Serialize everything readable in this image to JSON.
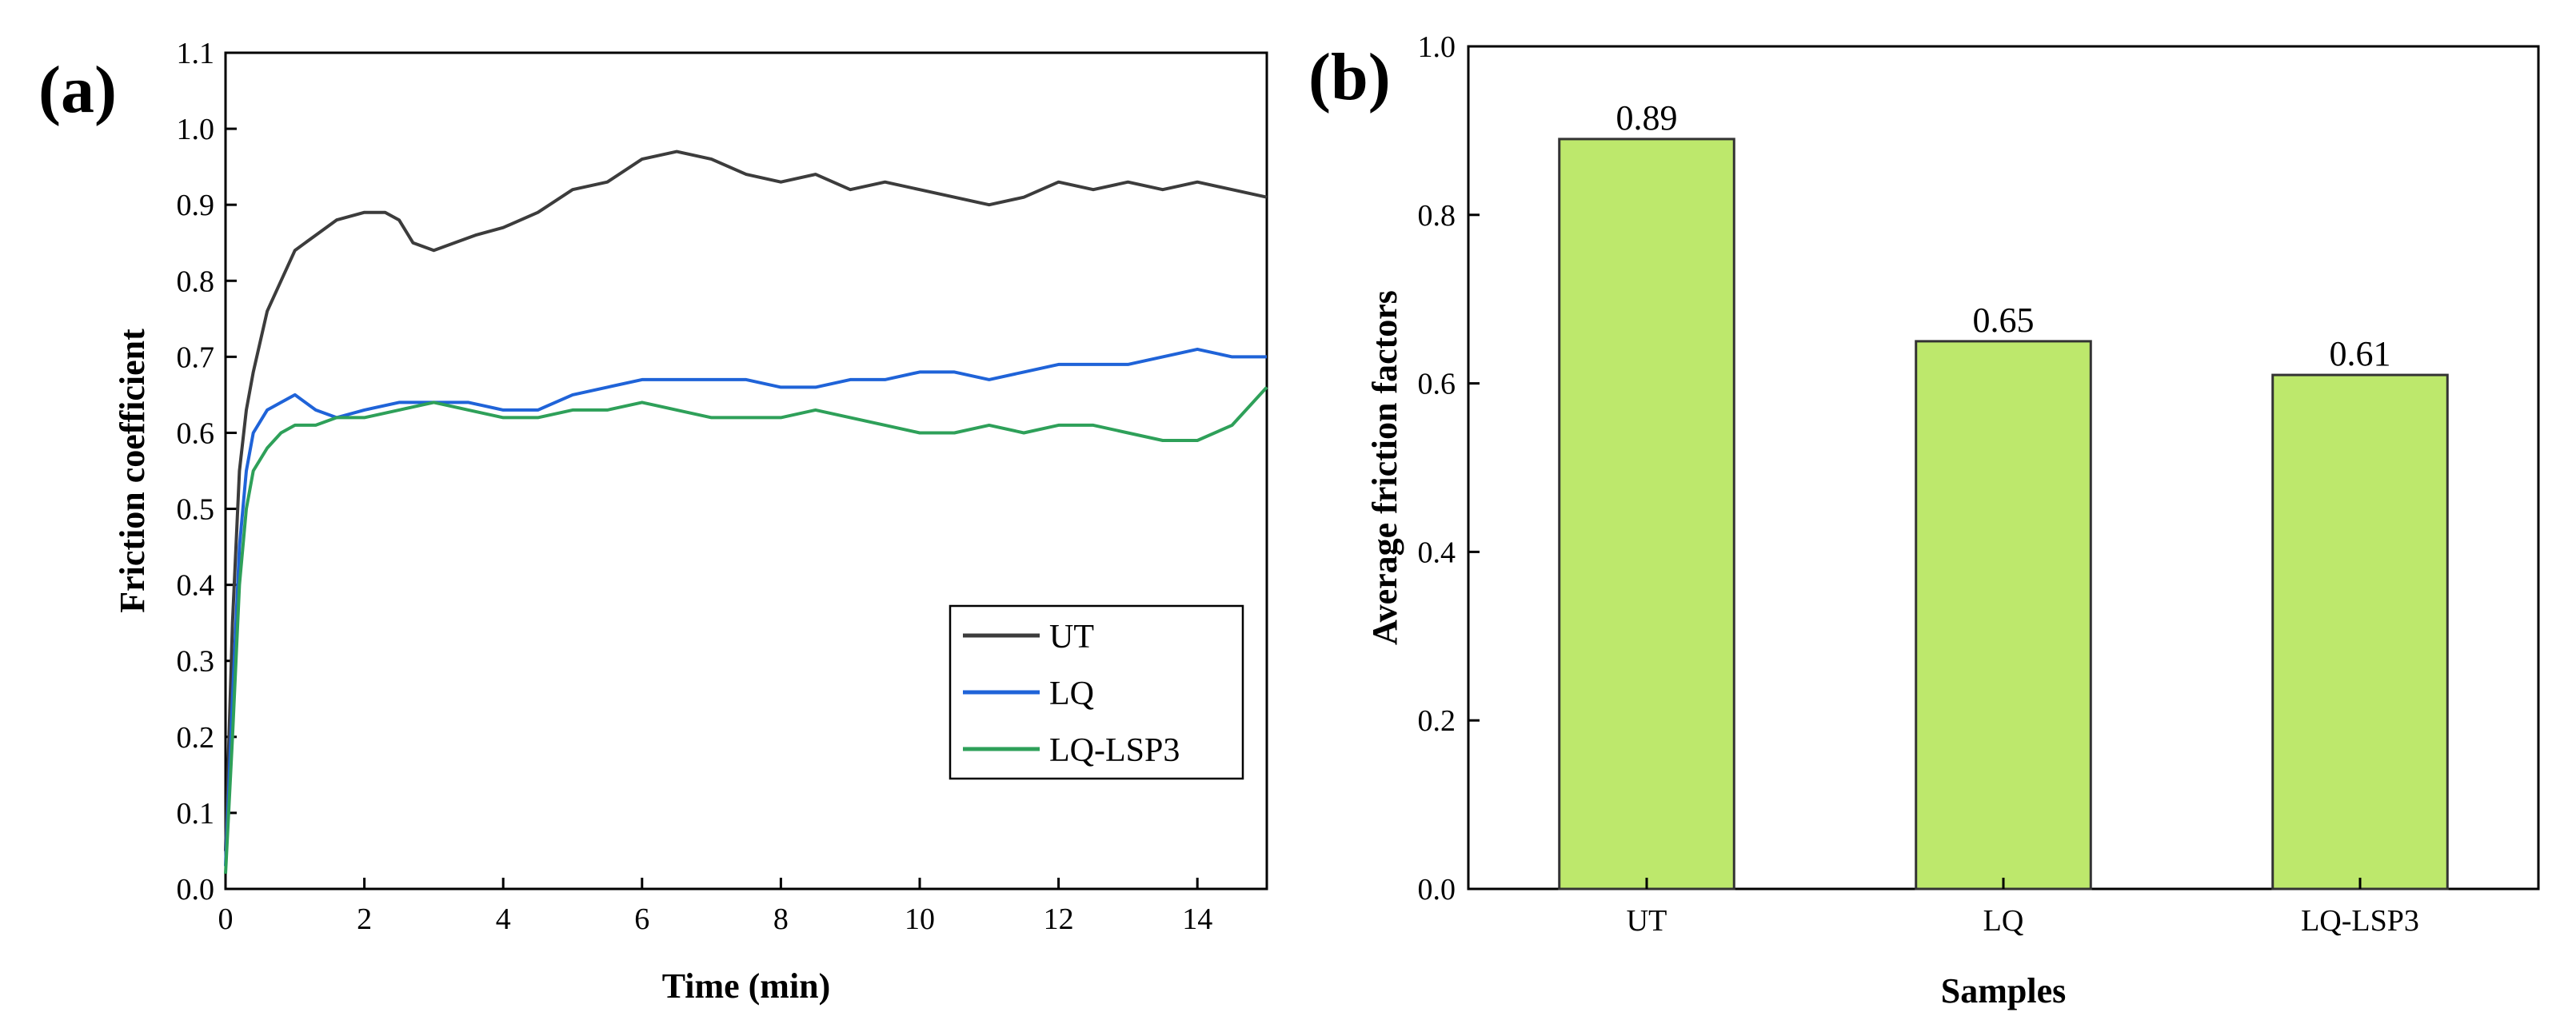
{
  "chart_data": [
    {
      "panel_label": "(a)",
      "type": "line",
      "title": "",
      "xlabel": "Time (min)",
      "ylabel": "Friction coefficient",
      "xlim": [
        0,
        15
      ],
      "ylim": [
        0.0,
        1.1
      ],
      "xticks": [
        "0",
        "2",
        "4",
        "6",
        "8",
        "10",
        "12",
        "14"
      ],
      "yticks": [
        "0.0",
        "0.1",
        "0.2",
        "0.3",
        "0.4",
        "0.5",
        "0.6",
        "0.7",
        "0.8",
        "0.9",
        "1.0",
        "1.1"
      ],
      "grid": false,
      "legend": "bottom-right",
      "series": [
        {
          "name": "UT",
          "color": "#3c3c3c",
          "x": [
            0,
            0.1,
            0.2,
            0.3,
            0.4,
            0.5,
            0.6,
            0.8,
            1.0,
            1.3,
            1.6,
            2.0,
            2.3,
            2.5,
            2.7,
            3.0,
            3.3,
            3.6,
            4.0,
            4.5,
            5.0,
            5.5,
            6.0,
            6.5,
            7.0,
            7.5,
            8.0,
            8.5,
            9.0,
            9.5,
            10.0,
            10.5,
            11.0,
            11.5,
            12.0,
            12.5,
            13.0,
            13.5,
            14.0,
            14.5,
            15.0
          ],
          "y": [
            0.05,
            0.35,
            0.55,
            0.63,
            0.68,
            0.72,
            0.76,
            0.8,
            0.84,
            0.86,
            0.88,
            0.89,
            0.89,
            0.88,
            0.85,
            0.84,
            0.85,
            0.86,
            0.87,
            0.89,
            0.92,
            0.93,
            0.96,
            0.97,
            0.96,
            0.94,
            0.93,
            0.94,
            0.92,
            0.93,
            0.92,
            0.91,
            0.9,
            0.91,
            0.93,
            0.92,
            0.93,
            0.92,
            0.93,
            0.92,
            0.91
          ]
        },
        {
          "name": "LQ",
          "color": "#1f63d8",
          "x": [
            0,
            0.1,
            0.2,
            0.3,
            0.4,
            0.6,
            0.8,
            1.0,
            1.3,
            1.6,
            2.0,
            2.5,
            3.0,
            3.5,
            4.0,
            4.5,
            5.0,
            5.5,
            6.0,
            6.5,
            7.0,
            7.5,
            8.0,
            8.5,
            9.0,
            9.5,
            10.0,
            10.5,
            11.0,
            11.5,
            12.0,
            12.5,
            13.0,
            13.5,
            14.0,
            14.5,
            15.0
          ],
          "y": [
            0.03,
            0.25,
            0.45,
            0.55,
            0.6,
            0.63,
            0.64,
            0.65,
            0.63,
            0.62,
            0.63,
            0.64,
            0.64,
            0.64,
            0.63,
            0.63,
            0.65,
            0.66,
            0.67,
            0.67,
            0.67,
            0.67,
            0.66,
            0.66,
            0.67,
            0.67,
            0.68,
            0.68,
            0.67,
            0.68,
            0.69,
            0.69,
            0.69,
            0.7,
            0.71,
            0.7,
            0.7
          ]
        },
        {
          "name": "LQ-LSP3",
          "color": "#2ea059",
          "x": [
            0,
            0.1,
            0.2,
            0.3,
            0.4,
            0.6,
            0.8,
            1.0,
            1.3,
            1.6,
            2.0,
            2.5,
            3.0,
            3.5,
            4.0,
            4.5,
            5.0,
            5.5,
            6.0,
            6.5,
            7.0,
            7.5,
            8.0,
            8.5,
            9.0,
            9.5,
            10.0,
            10.5,
            11.0,
            11.5,
            12.0,
            12.5,
            13.0,
            13.5,
            14.0,
            14.5,
            15.0
          ],
          "y": [
            0.02,
            0.2,
            0.4,
            0.5,
            0.55,
            0.58,
            0.6,
            0.61,
            0.61,
            0.62,
            0.62,
            0.63,
            0.64,
            0.63,
            0.62,
            0.62,
            0.63,
            0.63,
            0.64,
            0.63,
            0.62,
            0.62,
            0.62,
            0.63,
            0.62,
            0.61,
            0.6,
            0.6,
            0.61,
            0.6,
            0.61,
            0.61,
            0.6,
            0.59,
            0.59,
            0.61,
            0.66
          ]
        }
      ]
    },
    {
      "panel_label": "(b)",
      "type": "bar",
      "title": "",
      "xlabel": "Samples",
      "ylabel": "Average friction factors",
      "ylim": [
        0.0,
        1.0
      ],
      "yticks": [
        "0.0",
        "0.2",
        "0.4",
        "0.6",
        "0.8",
        "1.0"
      ],
      "categories": [
        "UT",
        "LQ",
        "LQ-LSP3"
      ],
      "values": [
        0.89,
        0.65,
        0.61
      ],
      "value_labels": [
        "0.89",
        "0.65",
        "0.61"
      ],
      "bar_color": "#bde86c",
      "bar_edge_color": "#333333",
      "grid": false
    }
  ]
}
